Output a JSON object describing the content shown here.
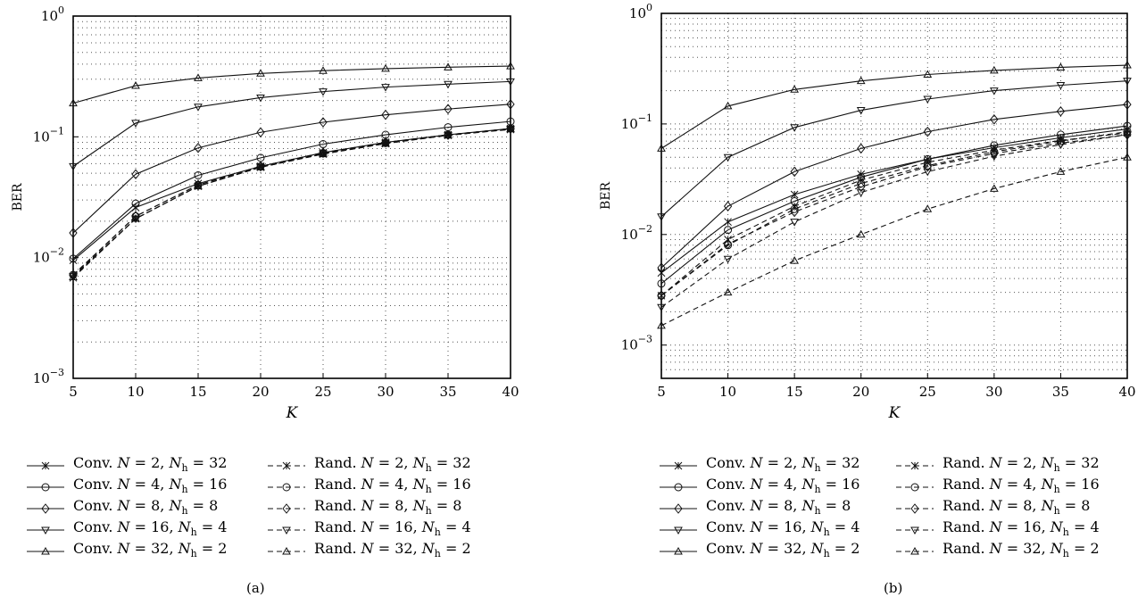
{
  "captions": [
    "(a)",
    "(b)"
  ],
  "legend": [
    {
      "label": "Conv. N = 2, Nh = 32",
      "dashed": false,
      "marker": "x"
    },
    {
      "label": "Conv. N = 4, Nh = 16",
      "dashed": false,
      "marker": "circle"
    },
    {
      "label": "Conv. N = 8, Nh = 8",
      "dashed": false,
      "marker": "diamond"
    },
    {
      "label": "Conv. N = 16, Nh = 4",
      "dashed": false,
      "marker": "triangle-down"
    },
    {
      "label": "Conv. N = 32, Nh = 2",
      "dashed": false,
      "marker": "triangle-up"
    },
    {
      "label": "Rand. N = 2, Nh = 32",
      "dashed": true,
      "marker": "x"
    },
    {
      "label": "Rand. N = 4, Nh = 16",
      "dashed": true,
      "marker": "circle"
    },
    {
      "label": "Rand. N = 8, Nh = 8",
      "dashed": true,
      "marker": "diamond"
    },
    {
      "label": "Rand. N = 16, Nh = 4",
      "dashed": true,
      "marker": "triangle-down"
    },
    {
      "label": "Rand. N = 32, Nh = 2",
      "dashed": true,
      "marker": "triangle-up"
    }
  ],
  "chart_data": [
    {
      "type": "line",
      "caption": "(a)",
      "xlabel": "K",
      "ylabel": "BER",
      "x": [
        5,
        10,
        15,
        20,
        25,
        30,
        35,
        40
      ],
      "xticks": [
        5,
        10,
        15,
        20,
        25,
        30,
        35,
        40
      ],
      "xlim": [
        5,
        40
      ],
      "ylim": [
        0.001,
        1
      ],
      "yscale": "log",
      "yticks": [
        "10^-3",
        "10^-2",
        "10^-1",
        "10^0"
      ],
      "grid": true,
      "legend_position": "below",
      "series": [
        {
          "name": "Conv. N = 2, Nh = 32",
          "dashed": false,
          "marker": "x",
          "values": [
            0.0095,
            0.026,
            0.041,
            0.057,
            0.074,
            0.09,
            0.104,
            0.117
          ]
        },
        {
          "name": "Conv. N = 4, Nh = 16",
          "dashed": false,
          "marker": "circle",
          "values": [
            0.0098,
            0.028,
            0.048,
            0.067,
            0.087,
            0.104,
            0.12,
            0.134
          ]
        },
        {
          "name": "Conv. N = 8, Nh = 8",
          "dashed": false,
          "marker": "diamond",
          "values": [
            0.016,
            0.049,
            0.081,
            0.109,
            0.132,
            0.152,
            0.17,
            0.186
          ]
        },
        {
          "name": "Conv. N = 16, Nh = 4",
          "dashed": false,
          "marker": "triangle-down",
          "values": [
            0.057,
            0.13,
            0.177,
            0.211,
            0.237,
            0.258,
            0.273,
            0.287
          ]
        },
        {
          "name": "Conv. N = 32, Nh = 2",
          "dashed": false,
          "marker": "triangle-up",
          "values": [
            0.19,
            0.265,
            0.307,
            0.335,
            0.353,
            0.367,
            0.377,
            0.385
          ]
        },
        {
          "name": "Rand. N = 2, Nh = 32",
          "dashed": true,
          "marker": "x",
          "values": [
            0.0068,
            0.021,
            0.039,
            0.056,
            0.072,
            0.088,
            0.103,
            0.115
          ]
        },
        {
          "name": "Rand. N = 4, Nh = 16",
          "dashed": true,
          "marker": "circle",
          "values": [
            0.0072,
            0.022,
            0.04,
            0.057,
            0.073,
            0.089,
            0.104,
            0.117
          ]
        },
        {
          "name": "Rand. N = 8, Nh = 8",
          "dashed": true,
          "marker": "diamond",
          "values": [
            0.0071,
            0.022,
            0.04,
            0.057,
            0.074,
            0.09,
            0.104,
            0.117
          ]
        },
        {
          "name": "Rand. N = 16, Nh = 4",
          "dashed": true,
          "marker": "triangle-down",
          "values": [
            0.007,
            0.021,
            0.039,
            0.056,
            0.073,
            0.089,
            0.103,
            0.116
          ]
        },
        {
          "name": "Rand. N = 32, Nh = 2",
          "dashed": true,
          "marker": "triangle-up",
          "values": [
            0.0069,
            0.021,
            0.039,
            0.056,
            0.072,
            0.088,
            0.103,
            0.116
          ]
        }
      ]
    },
    {
      "type": "line",
      "caption": "(b)",
      "xlabel": "K",
      "ylabel": "BER",
      "x": [
        5,
        10,
        15,
        20,
        25,
        30,
        35,
        40
      ],
      "xticks": [
        5,
        10,
        15,
        20,
        25,
        30,
        35,
        40
      ],
      "xlim": [
        5,
        40
      ],
      "ylim": [
        0.0005,
        1
      ],
      "yscale": "log",
      "yticks": [
        "10^-3",
        "10^-2",
        "10^-1",
        "10^0"
      ],
      "grid": true,
      "legend_position": "below",
      "series": [
        {
          "name": "Conv. N = 2, Nh = 32",
          "dashed": false,
          "marker": "x",
          "values": [
            0.0045,
            0.013,
            0.023,
            0.035,
            0.048,
            0.061,
            0.075,
            0.09
          ]
        },
        {
          "name": "Conv. N = 4, Nh = 16",
          "dashed": false,
          "marker": "circle",
          "values": [
            0.0036,
            0.011,
            0.02,
            0.033,
            0.048,
            0.064,
            0.08,
            0.096
          ]
        },
        {
          "name": "Conv. N = 8, Nh = 8",
          "dashed": false,
          "marker": "diamond",
          "values": [
            0.005,
            0.018,
            0.037,
            0.06,
            0.085,
            0.11,
            0.13,
            0.15
          ]
        },
        {
          "name": "Conv. N = 16, Nh = 4",
          "dashed": false,
          "marker": "triangle-down",
          "values": [
            0.0145,
            0.05,
            0.093,
            0.133,
            0.168,
            0.2,
            0.224,
            0.245
          ]
        },
        {
          "name": "Conv. N = 32, Nh = 2",
          "dashed": false,
          "marker": "triangle-up",
          "values": [
            0.06,
            0.145,
            0.205,
            0.245,
            0.28,
            0.305,
            0.325,
            0.34
          ]
        },
        {
          "name": "Rand. N = 2, Nh = 32",
          "dashed": true,
          "marker": "x",
          "values": [
            0.0028,
            0.009,
            0.018,
            0.031,
            0.045,
            0.058,
            0.071,
            0.083
          ]
        },
        {
          "name": "Rand. N = 4, Nh = 16",
          "dashed": true,
          "marker": "circle",
          "values": [
            0.0028,
            0.008,
            0.017,
            0.029,
            0.042,
            0.056,
            0.07,
            0.085
          ]
        },
        {
          "name": "Rand. N = 8, Nh = 8",
          "dashed": true,
          "marker": "diamond",
          "values": [
            0.0028,
            0.0082,
            0.016,
            0.027,
            0.041,
            0.054,
            0.067,
            0.08
          ]
        },
        {
          "name": "Rand. N = 16, Nh = 4",
          "dashed": true,
          "marker": "triangle-down",
          "values": [
            0.0022,
            0.006,
            0.013,
            0.024,
            0.037,
            0.051,
            0.065,
            0.08
          ]
        },
        {
          "name": "Rand. N = 32, Nh = 2",
          "dashed": true,
          "marker": "triangle-up",
          "values": [
            0.0015,
            0.003,
            0.0058,
            0.01,
            0.017,
            0.026,
            0.037,
            0.05
          ]
        }
      ]
    }
  ]
}
